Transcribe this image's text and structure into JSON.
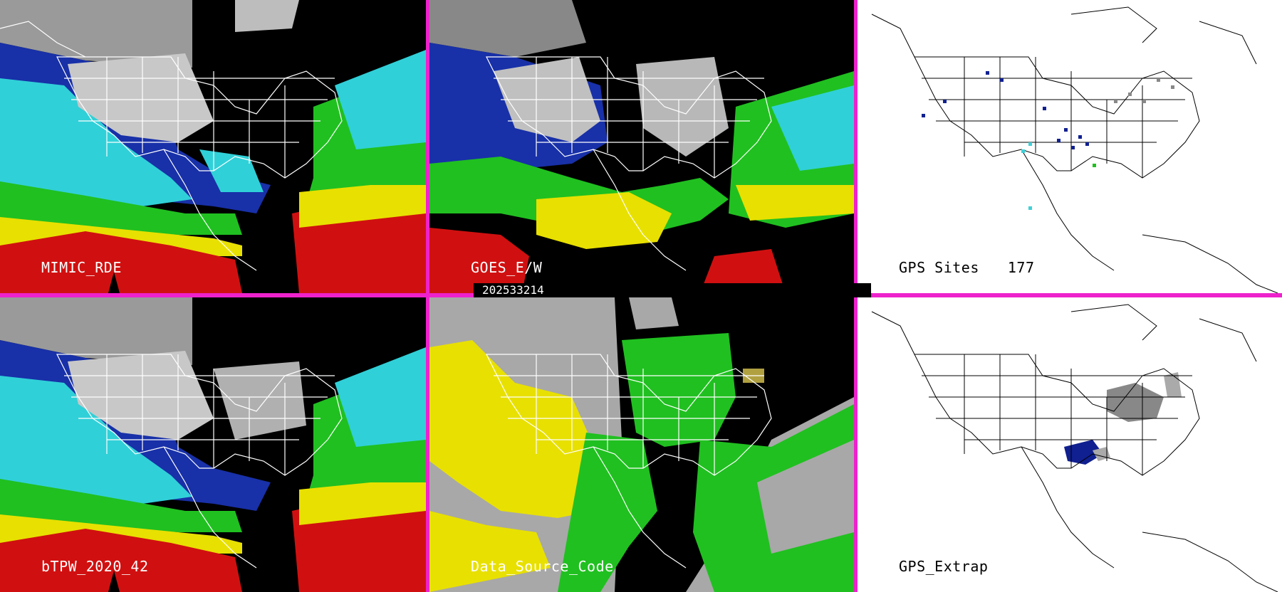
{
  "panels": [
    {
      "id": "p1",
      "label": "MIMIC_RDE"
    },
    {
      "id": "p2",
      "label": "GOES_E/W"
    },
    {
      "id": "p3",
      "label": "GPS Sites",
      "count": "177"
    },
    {
      "id": "p4",
      "label": "bTPW_2020_42"
    },
    {
      "id": "p5",
      "label": "Data_Source_Code"
    },
    {
      "id": "p6",
      "label": "GPS_Extrap"
    }
  ],
  "timestamp": "202533214",
  "colors": {
    "border": "#ee22cc",
    "red": "#d01010",
    "yellow": "#e8e000",
    "green": "#20c020",
    "cyan": "#40e0e0",
    "blue": "#102090",
    "gray": "#a8a8a8",
    "black": "#000000"
  }
}
